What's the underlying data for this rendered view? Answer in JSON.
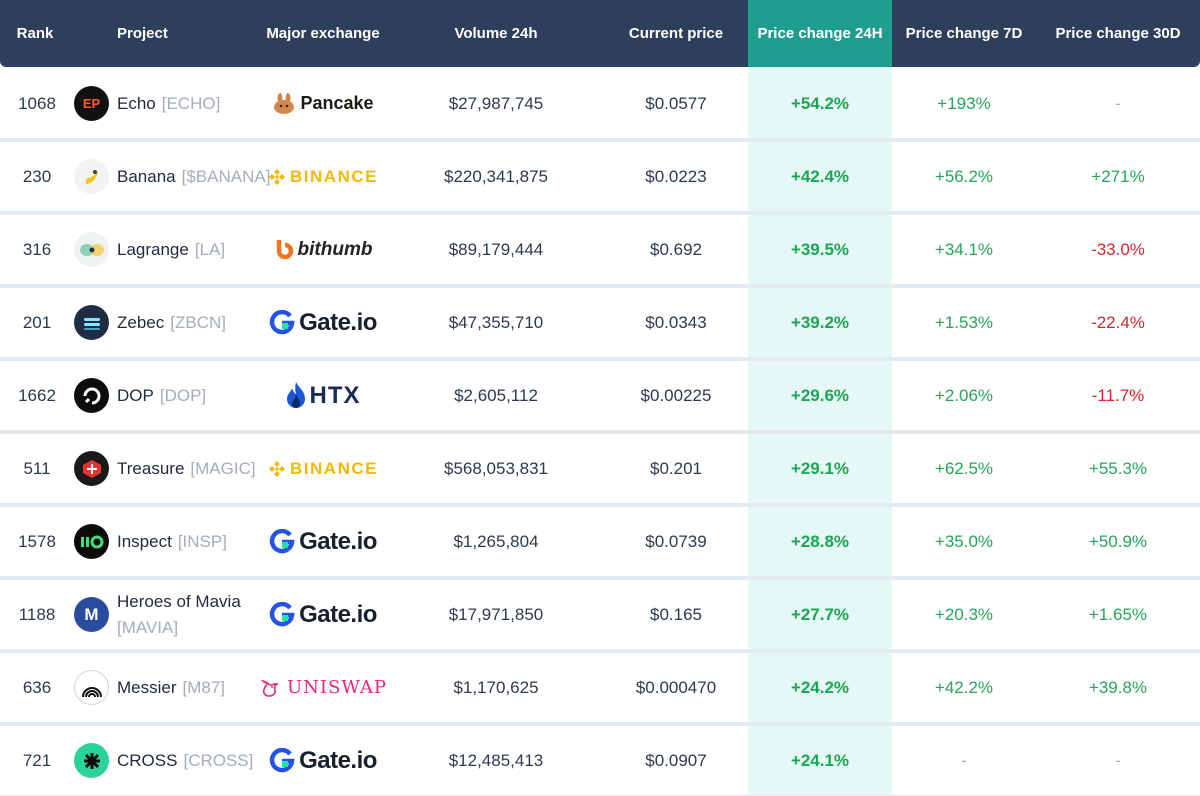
{
  "header": {
    "rank": "Rank",
    "project": "Project",
    "exchange": "Major exchange",
    "volume": "Volume 24h",
    "price": "Current price",
    "change24": "Price change 24H",
    "change7": "Price change 7D",
    "change30": "Price change 30D"
  },
  "colors": {
    "header_bg": "#2e3f5c",
    "highlight_col": "#1f9e8f",
    "highlight_body": "#e6f8f5",
    "positive": "#27a35a",
    "negative": "#d6262b"
  },
  "rows": [
    {
      "rank": "1068",
      "name": "Echo",
      "ticker": "[ECHO]",
      "exchange": "Pancake",
      "volume": "$27,987,745",
      "price": "$0.0577",
      "c24": "+54.2%",
      "c7": "+193%",
      "c30": "-"
    },
    {
      "rank": "230",
      "name": "Banana",
      "ticker": "[$BANANA]",
      "exchange": "BINANCE",
      "volume": "$220,341,875",
      "price": "$0.0223",
      "c24": "+42.4%",
      "c7": "+56.2%",
      "c30": "+271%"
    },
    {
      "rank": "316",
      "name": "Lagrange",
      "ticker": "[LA]",
      "exchange": "bithumb",
      "volume": "$89,179,444",
      "price": "$0.692",
      "c24": "+39.5%",
      "c7": "+34.1%",
      "c30": "-33.0%"
    },
    {
      "rank": "201",
      "name": "Zebec",
      "ticker": "[ZBCN]",
      "exchange": "Gate.io",
      "volume": "$47,355,710",
      "price": "$0.0343",
      "c24": "+39.2%",
      "c7": "+1.53%",
      "c30": "-22.4%"
    },
    {
      "rank": "1662",
      "name": "DOP",
      "ticker": "[DOP]",
      "exchange": "HTX",
      "volume": "$2,605,112",
      "price": "$0.00225",
      "c24": "+29.6%",
      "c7": "+2.06%",
      "c30": "-11.7%"
    },
    {
      "rank": "511",
      "name": "Treasure",
      "ticker": "[MAGIC]",
      "exchange": "BINANCE",
      "volume": "$568,053,831",
      "price": "$0.201",
      "c24": "+29.1%",
      "c7": "+62.5%",
      "c30": "+55.3%"
    },
    {
      "rank": "1578",
      "name": "Inspect",
      "ticker": "[INSP]",
      "exchange": "Gate.io",
      "volume": "$1,265,804",
      "price": "$0.0739",
      "c24": "+28.8%",
      "c7": "+35.0%",
      "c30": "+50.9%"
    },
    {
      "rank": "1188",
      "name": "Heroes of Mavia",
      "ticker": "[MAVIA]",
      "exchange": "Gate.io",
      "volume": "$17,971,850",
      "price": "$0.165",
      "c24": "+27.7%",
      "c7": "+20.3%",
      "c30": "+1.65%"
    },
    {
      "rank": "636",
      "name": "Messier",
      "ticker": "[M87]",
      "exchange": "UNISWAP",
      "volume": "$1,170,625",
      "price": "$0.000470",
      "c24": "+24.2%",
      "c7": "+42.2%",
      "c30": "+39.8%"
    },
    {
      "rank": "721",
      "name": "CROSS",
      "ticker": "[CROSS]",
      "exchange": "Gate.io",
      "volume": "$12,485,413",
      "price": "$0.0907",
      "c24": "+24.1%",
      "c7": "-",
      "c30": "-"
    }
  ]
}
